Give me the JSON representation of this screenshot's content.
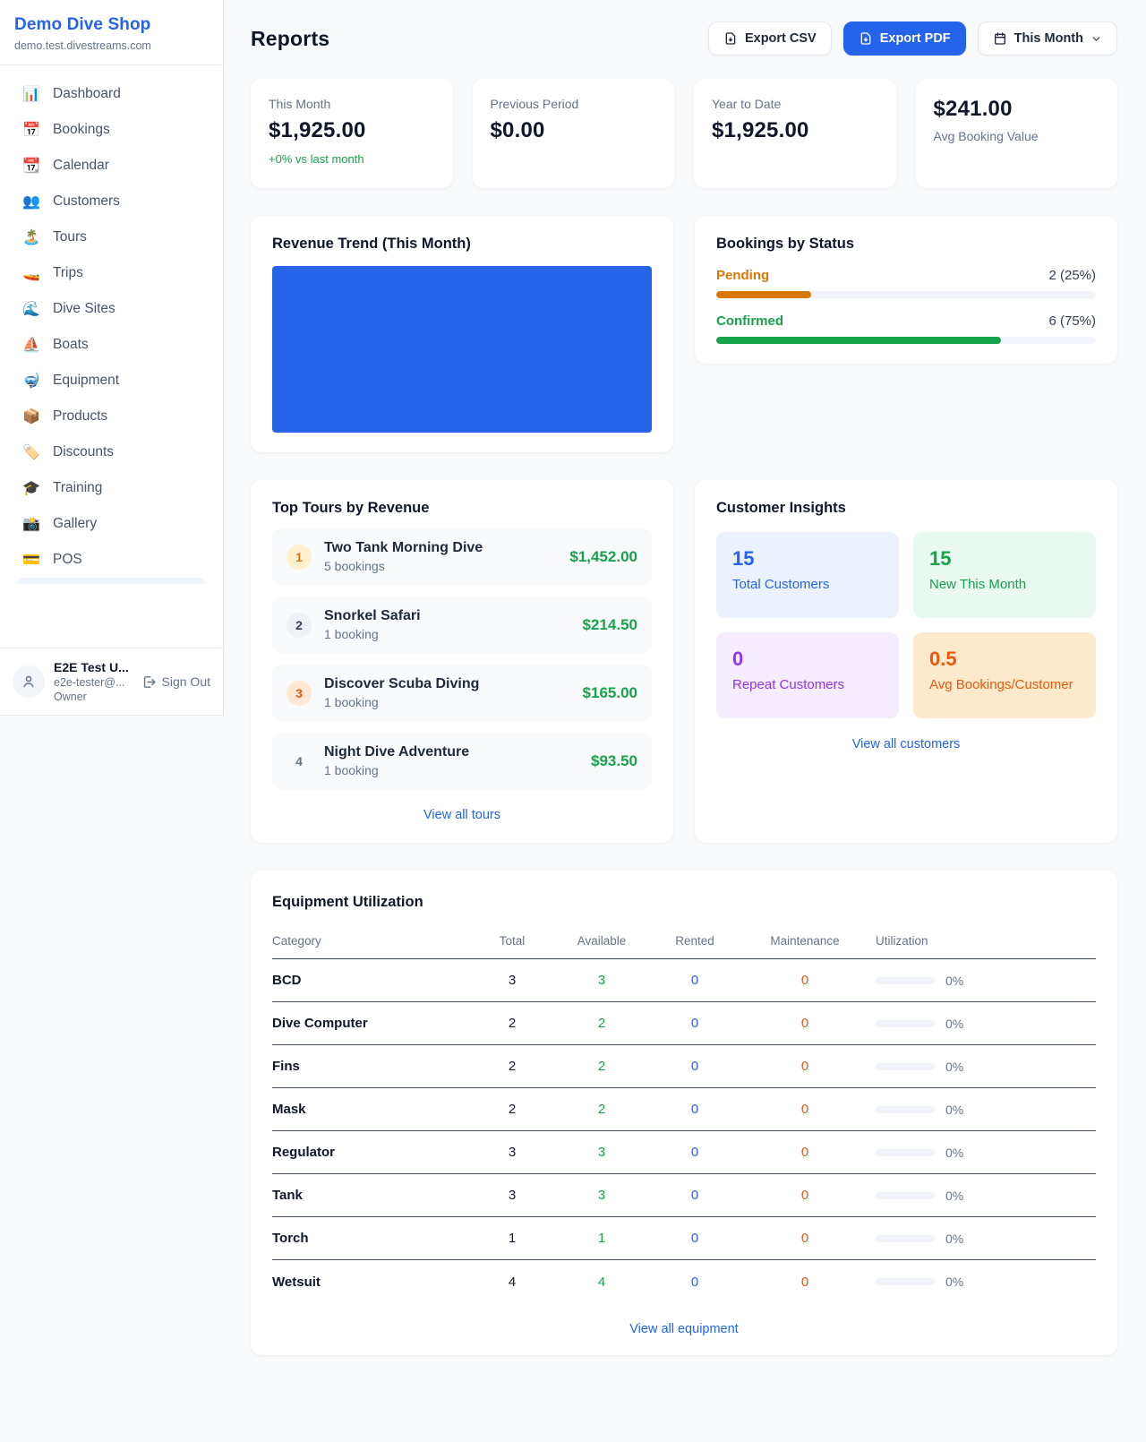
{
  "colors": {
    "accent_blue": "#2563eb",
    "green": "#16a34a",
    "orange_pending": "#d97706",
    "orange_deep": "#ea580c",
    "purple": "#9333ea"
  },
  "sidebar": {
    "shop_name": "Demo Dive Shop",
    "shop_domain": "demo.test.divestreams.com",
    "items": [
      {
        "icon": "📊",
        "label": "Dashboard"
      },
      {
        "icon": "📅",
        "label": "Bookings"
      },
      {
        "icon": "📆",
        "label": "Calendar"
      },
      {
        "icon": "👥",
        "label": "Customers"
      },
      {
        "icon": "🏝️",
        "label": "Tours"
      },
      {
        "icon": "🚤",
        "label": "Trips"
      },
      {
        "icon": "🌊",
        "label": "Dive Sites"
      },
      {
        "icon": "⛵",
        "label": "Boats"
      },
      {
        "icon": "🤿",
        "label": "Equipment"
      },
      {
        "icon": "📦",
        "label": "Products"
      },
      {
        "icon": "🏷️",
        "label": "Discounts"
      },
      {
        "icon": "🎓",
        "label": "Training"
      },
      {
        "icon": "📸",
        "label": "Gallery"
      },
      {
        "icon": "💳",
        "label": "POS"
      }
    ],
    "user": {
      "name": "E2E Test U...",
      "email": "e2e-tester@...",
      "role": "Owner",
      "sign_out_label": "Sign Out"
    }
  },
  "header": {
    "title": "Reports",
    "export_csv_label": "Export CSV",
    "export_pdf_label": "Export PDF",
    "period_label": "This Month"
  },
  "stats": [
    {
      "label": "This Month",
      "value": "$1,925.00",
      "change": "+0% vs last month"
    },
    {
      "label": "Previous Period",
      "value": "$0.00"
    },
    {
      "label": "Year to Date",
      "value": "$1,925.00"
    },
    {
      "label": "Avg Booking Value",
      "value": "$241.00"
    }
  ],
  "revenue_trend": {
    "title": "Revenue Trend (This Month)"
  },
  "chart_data": {
    "type": "bar",
    "title": "Revenue Trend (This Month)",
    "note": "Chart renders as one solid blue filled block spanning the whole plot area; no axes, tick labels, gridlines or legend are visible.",
    "fill_color": "#2563eb"
  },
  "bookings_status": {
    "title": "Bookings by Status",
    "items": [
      {
        "label": "Pending",
        "value_text": "2 (25%)",
        "pct": 25
      },
      {
        "label": "Confirmed",
        "value_text": "6 (75%)",
        "pct": 75
      }
    ]
  },
  "top_tours": {
    "title": "Top Tours by Revenue",
    "items": [
      {
        "rank": "1",
        "name": "Two Tank Morning Dive",
        "bookings": "5 bookings",
        "revenue": "$1,452.00"
      },
      {
        "rank": "2",
        "name": "Snorkel Safari",
        "bookings": "1 booking",
        "revenue": "$214.50"
      },
      {
        "rank": "3",
        "name": "Discover Scuba Diving",
        "bookings": "1 booking",
        "revenue": "$165.00"
      },
      {
        "rank": "4",
        "name": "Night Dive Adventure",
        "bookings": "1 booking",
        "revenue": "$93.50"
      }
    ],
    "view_all_label": "View all tours"
  },
  "customer_insights": {
    "title": "Customer Insights",
    "tiles": [
      {
        "value": "15",
        "label": "Total Customers"
      },
      {
        "value": "15",
        "label": "New This Month"
      },
      {
        "value": "0",
        "label": "Repeat Customers"
      },
      {
        "value": "0.5",
        "label": "Avg Bookings/Customer"
      }
    ],
    "view_all_label": "View all customers"
  },
  "equipment": {
    "title": "Equipment Utilization",
    "columns": [
      "Category",
      "Total",
      "Available",
      "Rented",
      "Maintenance",
      "Utilization"
    ],
    "rows": [
      {
        "category": "BCD",
        "total": "3",
        "available": "3",
        "rented": "0",
        "maintenance": "0",
        "utilization": "0%"
      },
      {
        "category": "Dive Computer",
        "total": "2",
        "available": "2",
        "rented": "0",
        "maintenance": "0",
        "utilization": "0%"
      },
      {
        "category": "Fins",
        "total": "2",
        "available": "2",
        "rented": "0",
        "maintenance": "0",
        "utilization": "0%"
      },
      {
        "category": "Mask",
        "total": "2",
        "available": "2",
        "rented": "0",
        "maintenance": "0",
        "utilization": "0%"
      },
      {
        "category": "Regulator",
        "total": "3",
        "available": "3",
        "rented": "0",
        "maintenance": "0",
        "utilization": "0%"
      },
      {
        "category": "Tank",
        "total": "3",
        "available": "3",
        "rented": "0",
        "maintenance": "0",
        "utilization": "0%"
      },
      {
        "category": "Torch",
        "total": "1",
        "available": "1",
        "rented": "0",
        "maintenance": "0",
        "utilization": "0%"
      },
      {
        "category": "Wetsuit",
        "total": "4",
        "available": "4",
        "rented": "0",
        "maintenance": "0",
        "utilization": "0%"
      }
    ],
    "view_all_label": "View all equipment"
  }
}
